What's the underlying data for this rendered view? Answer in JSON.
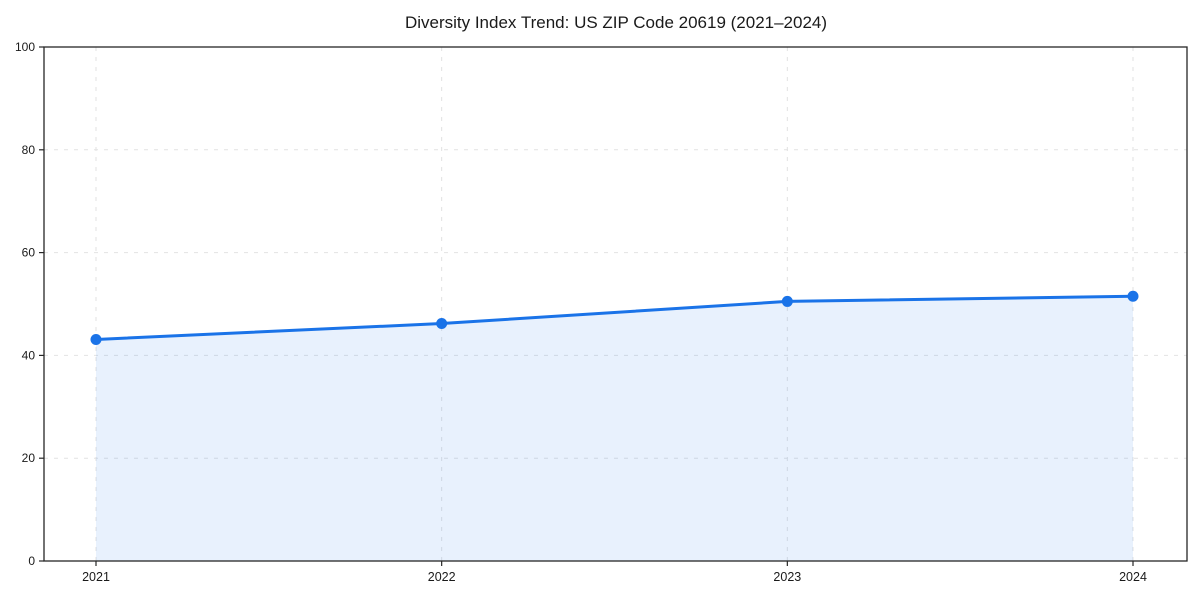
{
  "chart": {
    "title": "Diversity Index Trend: US ZIP Code 20619 (2021–2024)"
  },
  "chart_data": {
    "type": "area",
    "title": "Diversity Index Trend: US ZIP Code 20619 (2021–2024)",
    "categories": [
      "2021",
      "2022",
      "2023",
      "2024"
    ],
    "values": [
      43.1,
      46.2,
      50.5,
      51.5
    ],
    "series": [
      {
        "name": "Diversity Index",
        "values": [
          43.1,
          46.2,
          50.5,
          51.5
        ]
      }
    ],
    "xlabel": "",
    "ylabel": "",
    "ylim": [
      0,
      100
    ],
    "yticks": [
      0,
      20,
      40,
      60,
      80,
      100
    ],
    "grid": true,
    "grid_style": "dashed",
    "legend": "none",
    "line_color": "#1a73e8",
    "marker_color": "#1a73e8",
    "fill_color": "rgba(26, 115, 232, 0.10)",
    "grid_color": "#e2e2e2",
    "spine_color": "#262626",
    "tick_label_color": "#1a1a1a"
  }
}
